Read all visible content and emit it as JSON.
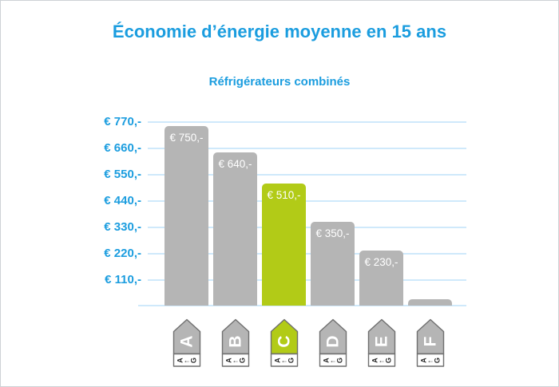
{
  "chart_data": {
    "type": "bar",
    "title": "Économie d’énergie moyenne en 15 ans",
    "subtitle": "Réfrigérateurs combinés",
    "categories": [
      "A",
      "B",
      "C",
      "D",
      "E",
      "F"
    ],
    "values": [
      750,
      640,
      510,
      350,
      230,
      25
    ],
    "bar_labels": [
      "€ 750,-",
      "€ 640,-",
      "€ 510,-",
      "€ 350,-",
      "€ 230,-",
      ""
    ],
    "highlight_index": 2,
    "highlight_category": "C",
    "y_ticks": [
      {
        "label": "€ 770,-",
        "value": 770
      },
      {
        "label": "€ 660,-",
        "value": 660
      },
      {
        "label": "€ 550,-",
        "value": 550
      },
      {
        "label": "€ 440,-",
        "value": 440
      },
      {
        "label": "€ 330,-",
        "value": 330
      },
      {
        "label": "€ 220,-",
        "value": 220
      },
      {
        "label": "€ 110,-",
        "value": 110
      }
    ],
    "ylim": [
      0,
      770
    ],
    "xlabel": "",
    "ylabel": "",
    "grid": true,
    "legend": null,
    "colors": {
      "bar_default": "#b5b5b5",
      "bar_highlight": "#b2cb17",
      "axis_text": "#1b9ddf",
      "gridline": "#cfe9fb",
      "bar_label_text": "#ffffff"
    }
  },
  "energy_tags": {
    "letters": [
      "A",
      "B",
      "C",
      "D",
      "E",
      "F"
    ],
    "scale": {
      "from": "A",
      "arrow": "←",
      "to": "G"
    },
    "highlight_letter": "C"
  }
}
